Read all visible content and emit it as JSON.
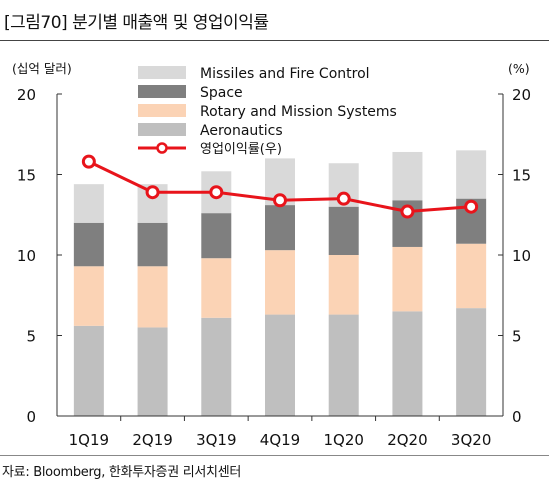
{
  "header": {
    "title": "[그림70] 분기별 매출액 및 영업이익률"
  },
  "footer": {
    "source": "자료: Bloomberg, 한화투자증권 리서치센터"
  },
  "chart_data": {
    "type": "bar",
    "stacked": true,
    "categories": [
      "1Q19",
      "2Q19",
      "3Q19",
      "4Q19",
      "1Q20",
      "2Q20",
      "3Q20"
    ],
    "y_left": {
      "label": "(십억 달러)",
      "range": [
        0,
        20
      ],
      "ticks": [
        "0",
        "5",
        "10",
        "15",
        "20"
      ]
    },
    "y_right": {
      "label": "(%)",
      "range": [
        0,
        20
      ],
      "ticks": [
        "0",
        "5",
        "10",
        "15",
        "20"
      ]
    },
    "legend_position": "top",
    "series": [
      {
        "name": "Aeronautics",
        "color": "#bfbfbf",
        "values": [
          5.6,
          5.5,
          6.1,
          6.3,
          6.3,
          6.5,
          6.7
        ]
      },
      {
        "name": "Rotary and Mission Systems",
        "color": "#fbd3b5",
        "values": [
          3.7,
          3.8,
          3.7,
          4.0,
          3.7,
          4.0,
          4.0
        ]
      },
      {
        "name": "Space",
        "color": "#7f7f7f",
        "values": [
          2.7,
          2.7,
          2.8,
          2.8,
          3.0,
          2.9,
          2.8
        ]
      },
      {
        "name": "Missiles and Fire Control",
        "color": "#d9d9d9",
        "values": [
          2.4,
          2.4,
          2.6,
          2.9,
          2.7,
          3.0,
          3.0
        ]
      }
    ],
    "line_series": {
      "name": "영업이익률(우)",
      "color": "#e8141b",
      "axis": "right",
      "values": [
        15.8,
        13.9,
        13.9,
        13.4,
        13.5,
        12.7,
        13.0
      ]
    }
  }
}
